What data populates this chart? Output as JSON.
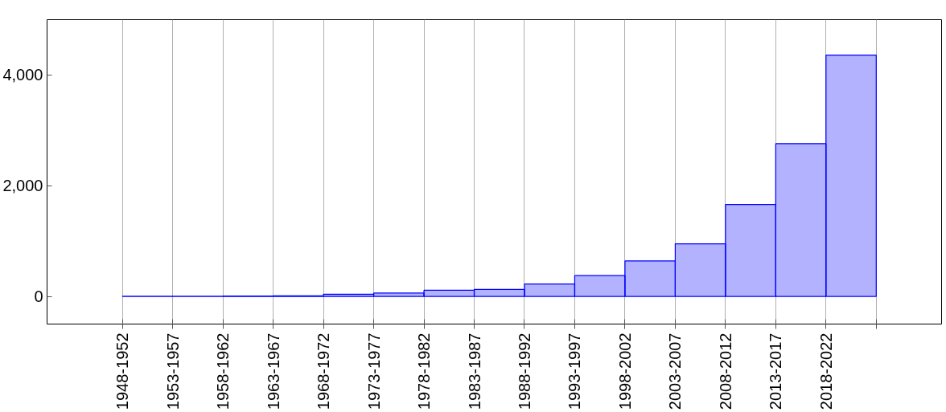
{
  "chart_data": {
    "type": "bar",
    "categories": [
      "1948-1952",
      "1953-1957",
      "1958-1962",
      "1963-1967",
      "1968-1972",
      "1973-1977",
      "1978-1982",
      "1983-1987",
      "1988-1992",
      "1993-1997",
      "1998-2002",
      "2003-2007",
      "2008-2012",
      "2013-2017",
      "2018-2022"
    ],
    "values": [
      2,
      2,
      8,
      10,
      40,
      60,
      110,
      125,
      225,
      375,
      640,
      950,
      1660,
      2760,
      4360
    ],
    "color": "#0000ff",
    "ylim": [
      -500,
      5000
    ],
    "yticks": [
      {
        "value": 0,
        "label": "0"
      },
      {
        "value": 2000,
        "label": "2,000"
      },
      {
        "value": 4000,
        "label": "4,000"
      }
    ],
    "grid": "x"
  }
}
